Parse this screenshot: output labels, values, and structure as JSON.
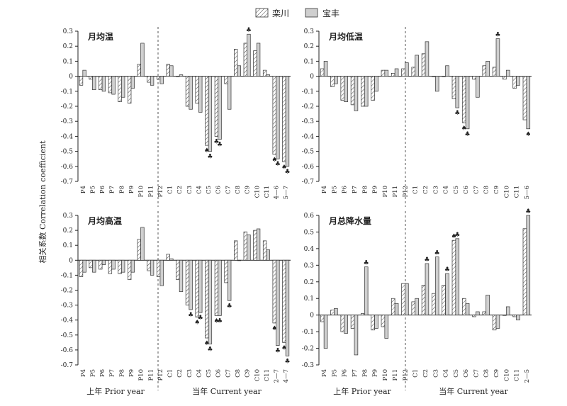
{
  "legend": [
    {
      "name": "栾川",
      "pattern": "hatch"
    },
    {
      "name": "宝丰",
      "pattern": "solid",
      "color": "#cfcfcf"
    }
  ],
  "y_axis_label": "相关系数 Correlation coefficient",
  "x_group_labels": {
    "prior": "上年 Prior year",
    "current": "当年 Current year"
  },
  "colors": {
    "bar_fill": "#cfcfcf",
    "hatch_line": "#555555",
    "axis": "#222222"
  },
  "chart_data": [
    {
      "type": "bar",
      "title": "月均温",
      "ylim": [
        -0.7,
        0.3
      ],
      "yticks": [
        "0.3",
        "0.2",
        "0.1",
        "0",
        "-0.1",
        "-0.2",
        "-0.3",
        "-0.4",
        "-0.5",
        "-0.6",
        "-0.7"
      ],
      "categories": [
        "P4",
        "P5",
        "P6",
        "P7",
        "P8",
        "P9",
        "P10",
        "P11",
        "P12",
        "C1",
        "C2",
        "C3",
        "C4",
        "C5",
        "C6",
        "C7",
        "C8",
        "C9",
        "C10",
        "C11",
        "4—6",
        "5—7"
      ],
      "series": [
        {
          "name": "栾川",
          "values": [
            -0.06,
            -0.02,
            -0.09,
            -0.11,
            -0.17,
            -0.18,
            0.08,
            -0.04,
            -0.02,
            0.08,
            0.0,
            -0.2,
            -0.18,
            -0.46,
            -0.4,
            -0.05,
            0.18,
            0.22,
            0.17,
            0.04,
            -0.52,
            -0.57
          ]
        },
        {
          "name": "宝丰",
          "values": [
            0.04,
            -0.09,
            -0.1,
            -0.12,
            -0.14,
            -0.08,
            0.22,
            -0.06,
            -0.05,
            0.07,
            0.01,
            -0.22,
            -0.24,
            -0.5,
            -0.42,
            -0.22,
            0.07,
            0.28,
            0.22,
            0.01,
            -0.55,
            -0.6
          ]
        }
      ],
      "markers": [
        {
          "category": "C5",
          "series": "栾川",
          "symbol": "♠"
        },
        {
          "category": "C5",
          "series": "宝丰",
          "symbol": "♣"
        },
        {
          "category": "C6",
          "series": "栾川",
          "symbol": "♣"
        },
        {
          "category": "C6",
          "series": "宝丰",
          "symbol": "♣"
        },
        {
          "category": "C9",
          "series": "宝丰",
          "symbol": "♣"
        },
        {
          "category": "4—6",
          "series": "栾川",
          "symbol": "♠"
        },
        {
          "category": "4—6",
          "series": "宝丰",
          "symbol": "♣"
        },
        {
          "category": "5—7",
          "series": "栾川",
          "symbol": "♠"
        },
        {
          "category": "5—7",
          "series": "宝丰",
          "symbol": "♣"
        }
      ]
    },
    {
      "type": "bar",
      "title": "月均低温",
      "ylim": [
        -0.7,
        0.3
      ],
      "yticks": [
        "0.3",
        "0.2",
        "0.1",
        "0",
        "-0.1",
        "-0.2",
        "-0.3",
        "-0.4",
        "-0.5",
        "-0.6",
        "-0.7"
      ],
      "categories": [
        "P4",
        "P5",
        "P6",
        "P7",
        "P8",
        "P9",
        "P10",
        "P11",
        "P12",
        "C1",
        "C2",
        "C3",
        "C4",
        "C5",
        "C6",
        "C7",
        "C8",
        "C9",
        "C10",
        "C11",
        "5—6"
      ],
      "series": [
        {
          "name": "栾川",
          "values": [
            0.05,
            -0.07,
            -0.16,
            -0.19,
            -0.2,
            -0.16,
            0.04,
            0.02,
            0.05,
            0.06,
            0.15,
            0.0,
            0.0,
            -0.15,
            -0.31,
            -0.02,
            0.07,
            0.06,
            -0.02,
            -0.08,
            -0.29
          ]
        },
        {
          "name": "宝丰",
          "values": [
            0.1,
            -0.05,
            -0.17,
            -0.23,
            -0.2,
            -0.1,
            0.04,
            0.05,
            0.09,
            0.14,
            0.23,
            -0.1,
            0.07,
            -0.21,
            -0.35,
            -0.14,
            0.1,
            0.25,
            0.04,
            -0.06,
            -0.35
          ]
        }
      ],
      "markers": [
        {
          "category": "C5",
          "series": "宝丰",
          "symbol": "♣"
        },
        {
          "category": "C6",
          "series": "栾川",
          "symbol": "♠"
        },
        {
          "category": "C6",
          "series": "宝丰",
          "symbol": "♣"
        },
        {
          "category": "C9",
          "series": "宝丰",
          "symbol": "♣"
        },
        {
          "category": "5—6",
          "series": "宝丰",
          "symbol": "♠"
        }
      ]
    },
    {
      "type": "bar",
      "title": "月均高温",
      "ylim": [
        -0.7,
        0.3
      ],
      "yticks": [
        "0.3",
        "0.2",
        "0.1",
        "0",
        "-0.1",
        "-0.2",
        "-0.3",
        "-0.4",
        "-0.5",
        "-0.6",
        "-0.7"
      ],
      "categories": [
        "P4",
        "P5",
        "P6",
        "P7",
        "P8",
        "P9",
        "P10",
        "P11",
        "P12",
        "C1",
        "C2",
        "C3",
        "C4",
        "C5",
        "C6",
        "C7",
        "C8",
        "C9",
        "C10",
        "C11",
        "2—7",
        "4—7"
      ],
      "series": [
        {
          "name": "栾川",
          "values": [
            -0.11,
            -0.05,
            -0.06,
            -0.09,
            -0.09,
            -0.13,
            0.14,
            -0.07,
            -0.11,
            0.04,
            -0.13,
            -0.3,
            -0.38,
            -0.52,
            -0.37,
            -0.15,
            0.13,
            0.19,
            0.2,
            0.13,
            -0.42,
            -0.55
          ]
        },
        {
          "name": "宝丰",
          "values": [
            -0.08,
            -0.08,
            -0.03,
            -0.06,
            -0.08,
            -0.08,
            0.22,
            -0.1,
            -0.17,
            0.01,
            -0.21,
            -0.33,
            -0.35,
            -0.56,
            -0.37,
            -0.27,
            0.0,
            0.17,
            0.21,
            0.07,
            -0.57,
            -0.64
          ]
        }
      ],
      "markers": [
        {
          "category": "C3",
          "series": "宝丰",
          "symbol": "♣"
        },
        {
          "category": "C4",
          "series": "栾川",
          "symbol": "♠"
        },
        {
          "category": "C4",
          "series": "宝丰",
          "symbol": "♣"
        },
        {
          "category": "C5",
          "series": "栾川",
          "symbol": "♠"
        },
        {
          "category": "C5",
          "series": "宝丰",
          "symbol": "♣"
        },
        {
          "category": "C6",
          "series": "栾川",
          "symbol": "♠"
        },
        {
          "category": "C6",
          "series": "宝丰",
          "symbol": "♣"
        },
        {
          "category": "C7",
          "series": "宝丰",
          "symbol": "♣"
        },
        {
          "category": "2—7",
          "series": "栾川",
          "symbol": "♠"
        },
        {
          "category": "2—7",
          "series": "宝丰",
          "symbol": "♣"
        },
        {
          "category": "4—7",
          "series": "栾川",
          "symbol": "♠"
        },
        {
          "category": "4—7",
          "series": "宝丰",
          "symbol": "♣"
        }
      ]
    },
    {
      "type": "bar",
      "title": "月总降水量",
      "ylim": [
        -0.3,
        0.6
      ],
      "yticks": [
        "0.6",
        "0.5",
        "0.4",
        "0.3",
        "0.2",
        "0.1",
        "0",
        "-0.1",
        "-0.2",
        "-0.3"
      ],
      "categories": [
        "P4",
        "P5",
        "P6",
        "P7",
        "P8",
        "P9",
        "P10",
        "P11",
        "P12",
        "C1",
        "C2",
        "C3",
        "C4",
        "C5",
        "C6",
        "C7",
        "C8",
        "C9",
        "C10",
        "C11",
        "2—5"
      ],
      "series": [
        {
          "name": "栾川",
          "values": [
            -0.04,
            0.03,
            -0.1,
            -0.08,
            0.01,
            -0.09,
            -0.07,
            0.1,
            0.19,
            0.08,
            0.18,
            0.13,
            0.18,
            0.45,
            0.1,
            -0.01,
            0.02,
            -0.09,
            0.0,
            -0.01,
            0.52
          ]
        },
        {
          "name": "宝丰",
          "values": [
            -0.2,
            0.04,
            -0.11,
            -0.24,
            0.29,
            -0.08,
            -0.14,
            0.07,
            0.19,
            0.1,
            0.31,
            0.35,
            0.25,
            0.46,
            0.07,
            0.02,
            0.12,
            -0.08,
            0.05,
            -0.03,
            0.6
          ]
        }
      ],
      "markers": [
        {
          "category": "P8",
          "series": "宝丰",
          "symbol": "♣"
        },
        {
          "category": "C2",
          "series": "宝丰",
          "symbol": "♣"
        },
        {
          "category": "C3",
          "series": "宝丰",
          "symbol": "♣"
        },
        {
          "category": "C4",
          "series": "宝丰",
          "symbol": "♣"
        },
        {
          "category": "C5",
          "series": "栾川",
          "symbol": "♠"
        },
        {
          "category": "C5",
          "series": "宝丰",
          "symbol": "♣"
        },
        {
          "category": "2—5",
          "series": "宝丰",
          "symbol": "♣"
        }
      ]
    }
  ]
}
